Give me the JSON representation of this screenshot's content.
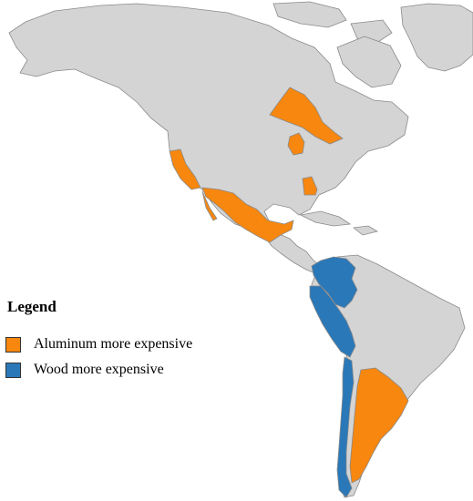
{
  "legend": {
    "title": "Legend",
    "items": [
      {
        "label": "Aluminum more expensive",
        "color": "#f7870f"
      },
      {
        "label": "Wood more expensive",
        "color": "#2a78b8"
      }
    ]
  },
  "colors": {
    "land": "#d4d4d4",
    "border": "#8a8a8a",
    "water": "#ffffff",
    "aluminum": "#f7870f",
    "wood": "#2a78b8"
  },
  "regions": {
    "aluminum_more_expensive": [
      "Ontario",
      "Michigan",
      "California",
      "Georgia",
      "Mexico",
      "Argentina"
    ],
    "wood_more_expensive": [
      "Colombia",
      "Peru",
      "Chile"
    ]
  }
}
